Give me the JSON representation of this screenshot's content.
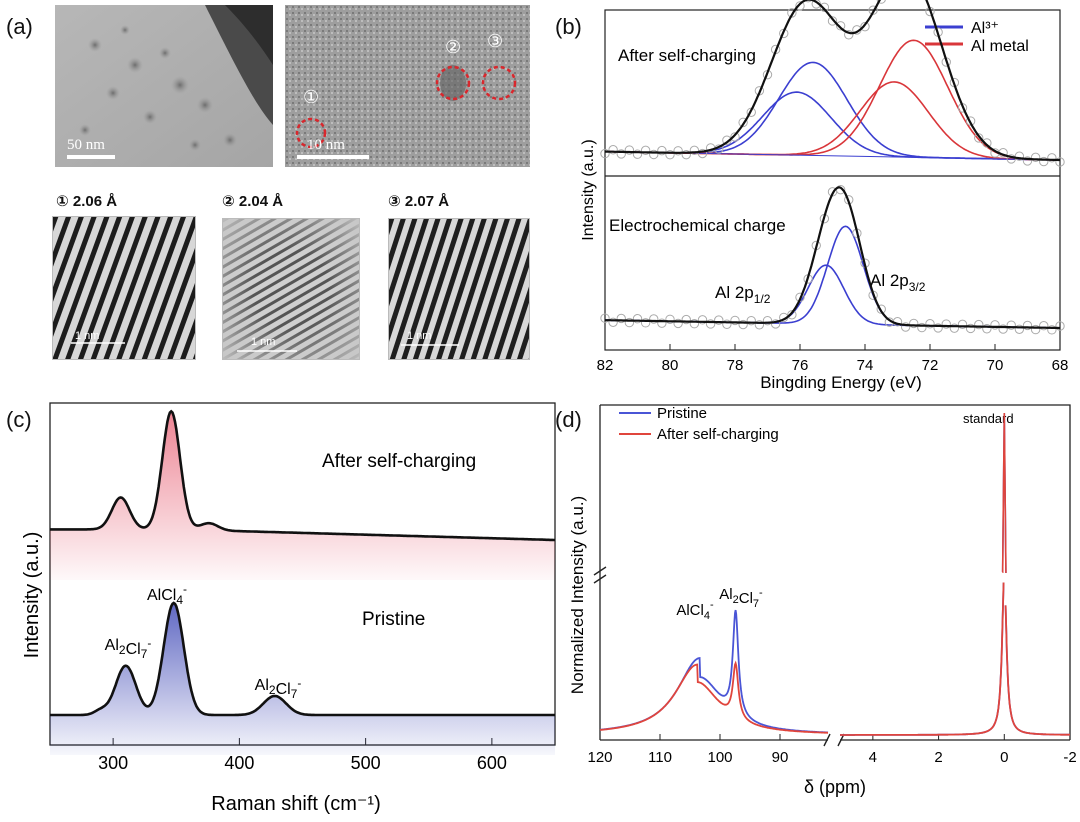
{
  "panels": {
    "a": {
      "tag": "(a)",
      "tem_left_scale": "50 nm",
      "tem_right_scale": "10 nm",
      "markers": [
        "①",
        "②",
        "③"
      ],
      "fringes": [
        {
          "label": "① 2.06 Å",
          "scale": "1 nm",
          "spacing_A": 2.06
        },
        {
          "label": "② 2.04 Å",
          "scale": "1 nm",
          "spacing_A": 2.04
        },
        {
          "label": "③ 2.07 Å",
          "scale": "1 nm",
          "spacing_A": 2.07
        }
      ]
    },
    "b": {
      "tag": "(b)",
      "top_label": "After self-charging",
      "bottom_label": "Electrochemical charge",
      "legend": [
        {
          "label": "Al³⁺",
          "color": "#3b3fd0"
        },
        {
          "label": "Al metal",
          "color": "#d9363a"
        }
      ],
      "peak_left": "Al 2p",
      "peak_left_sub": "1/2",
      "peak_right": "Al 2p",
      "peak_right_sub": "3/2"
    },
    "c": {
      "tag": "(c)",
      "label_top": "After self-charging",
      "label_bottom": "Pristine"
    },
    "d": {
      "tag": "(d)",
      "standard": "standard"
    }
  },
  "chart_data": [
    {
      "type": "line",
      "panel": "b",
      "xlabel": "Bingding Energy (eV)",
      "ylabel": "Intensity (a.u.)",
      "xlim": [
        82,
        68
      ],
      "x_ticks": [
        82,
        80,
        78,
        76,
        74,
        72,
        70,
        68
      ],
      "series": [
        {
          "name": "Al³⁺",
          "color": "#3b3fd0",
          "curve": "After self-charging",
          "components": [
            {
              "center": 75.6,
              "height": 0.62
            },
            {
              "center": 76.1,
              "height": 0.42
            }
          ]
        },
        {
          "name": "Al metal",
          "color": "#d9363a",
          "curve": "After self-charging",
          "components": [
            {
              "center": 72.5,
              "height": 0.78
            },
            {
              "center": 73.1,
              "height": 0.5
            }
          ]
        },
        {
          "name": "Al 2p3/2",
          "color": "#3b3fd0",
          "curve": "Electrochemical charge",
          "components": [
            {
              "center": 74.6,
              "height": 0.7
            }
          ]
        },
        {
          "name": "Al 2p1/2",
          "color": "#3b3fd0",
          "curve": "Electrochemical charge",
          "components": [
            {
              "center": 75.2,
              "height": 0.42
            }
          ]
        }
      ]
    },
    {
      "type": "line",
      "panel": "c",
      "xlabel": "Raman shift (cm⁻¹)",
      "ylabel": "Intensity (a.u.)",
      "xlim": [
        250,
        650
      ],
      "x_ticks": [
        300,
        400,
        500,
        600
      ],
      "peak_labels": [
        {
          "text": "AlCl4-",
          "x": 348
        },
        {
          "text": "Al2Cl7-",
          "x": 310
        },
        {
          "text": "Al2Cl7-",
          "x": 430
        }
      ],
      "series": [
        {
          "name": "After self-charging",
          "color": "#e8677a",
          "peaks": [
            {
              "x": 306,
              "height": 0.27
            },
            {
              "x": 346,
              "height": 1.0
            },
            {
              "x": 376,
              "height": 0.06
            }
          ]
        },
        {
          "name": "Pristine",
          "color": "#3a44b4",
          "peaks": [
            {
              "x": 310,
              "height": 0.44
            },
            {
              "x": 348,
              "height": 1.0
            },
            {
              "x": 428,
              "height": 0.17
            }
          ]
        }
      ]
    },
    {
      "type": "line",
      "panel": "d",
      "xlabel": "δ (ppm)",
      "ylabel": "Normalized Intensity (a.u.)",
      "x_ticks_left": [
        120,
        110,
        100,
        90
      ],
      "x_ticks_right": [
        4,
        2,
        0,
        -2
      ],
      "peak_labels": [
        {
          "text": "AlCl4-",
          "x": 103
        },
        {
          "text": "Al2Cl7-",
          "x": 97
        }
      ],
      "series": [
        {
          "name": "Pristine",
          "color": "#4a55d6",
          "peaks": [
            {
              "x": 103.4,
              "height": 0.88
            },
            {
              "x": 97.4,
              "height": 0.92
            },
            {
              "x": 0,
              "height": "broken-axis"
            }
          ]
        },
        {
          "name": "After self-charging",
          "color": "#e0453c",
          "peaks": [
            {
              "x": 103.8,
              "height": 0.81
            },
            {
              "x": 97.4,
              "height": 0.48
            },
            {
              "x": 0,
              "height": "broken-axis"
            }
          ]
        }
      ]
    }
  ]
}
